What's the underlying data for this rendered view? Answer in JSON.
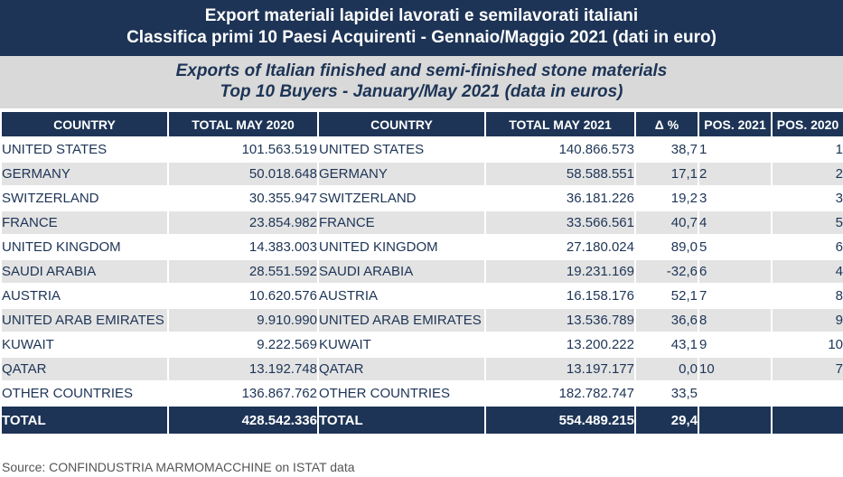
{
  "header": {
    "title_it_line1": "Export materiali lapidei lavorati e semilavorati italiani",
    "title_it_line2": "Classifica primi 10 Paesi Acquirenti - Gennaio/Maggio 2021 (dati in euro)",
    "title_en_line1": "Exports of Italian finished and semi-finished stone materials",
    "title_en_line2": "Top 10 Buyers - January/May 2021 (data in euros)"
  },
  "columns": [
    "COUNTRY",
    "TOTAL MAY 2020",
    "COUNTRY",
    "TOTAL MAY 2021",
    "Δ %",
    "POS. 2021",
    "POS. 2020"
  ],
  "rows": [
    [
      "UNITED STATES",
      "101.563.519",
      "UNITED STATES",
      "140.866.573",
      "38,7",
      "1",
      "1"
    ],
    [
      "GERMANY",
      "50.018.648",
      "GERMANY",
      "58.588.551",
      "17,1",
      "2",
      "2"
    ],
    [
      "SWITZERLAND",
      "30.355.947",
      "SWITZERLAND",
      "36.181.226",
      "19,2",
      "3",
      "3"
    ],
    [
      "FRANCE",
      "23.854.982",
      "FRANCE",
      "33.566.561",
      "40,7",
      "4",
      "5"
    ],
    [
      "UNITED KINGDOM",
      "14.383.003",
      "UNITED KINGDOM",
      "27.180.024",
      "89,0",
      "5",
      "6"
    ],
    [
      "SAUDI ARABIA",
      "28.551.592",
      "SAUDI ARABIA",
      "19.231.169",
      "-32,6",
      "6",
      "4"
    ],
    [
      "AUSTRIA",
      "10.620.576",
      "AUSTRIA",
      "16.158.176",
      "52,1",
      "7",
      "8"
    ],
    [
      "UNITED ARAB EMIRATES",
      "9.910.990",
      "UNITED ARAB EMIRATES",
      "13.536.789",
      "36,6",
      "8",
      "9"
    ],
    [
      "KUWAIT",
      "9.222.569",
      "KUWAIT",
      "13.200.222",
      "43,1",
      "9",
      "10"
    ],
    [
      "QATAR",
      "13.192.748",
      "QATAR",
      "13.197.177",
      "0,0",
      "10",
      "7"
    ],
    [
      "OTHER COUNTRIES",
      "136.867.762",
      "OTHER COUNTRIES",
      "182.782.747",
      "33,5",
      "",
      ""
    ]
  ],
  "total": [
    "TOTAL",
    "428.542.336",
    "TOTAL",
    "554.489.215",
    "29,4",
    "",
    ""
  ],
  "source": "Source: CONFINDUSTRIA MARMOMACCHINE on ISTAT data",
  "colors": {
    "header_navy": "#1d3456",
    "band_gray": "#d9d9d9",
    "row_alt_gray": "#e3e3e3"
  }
}
